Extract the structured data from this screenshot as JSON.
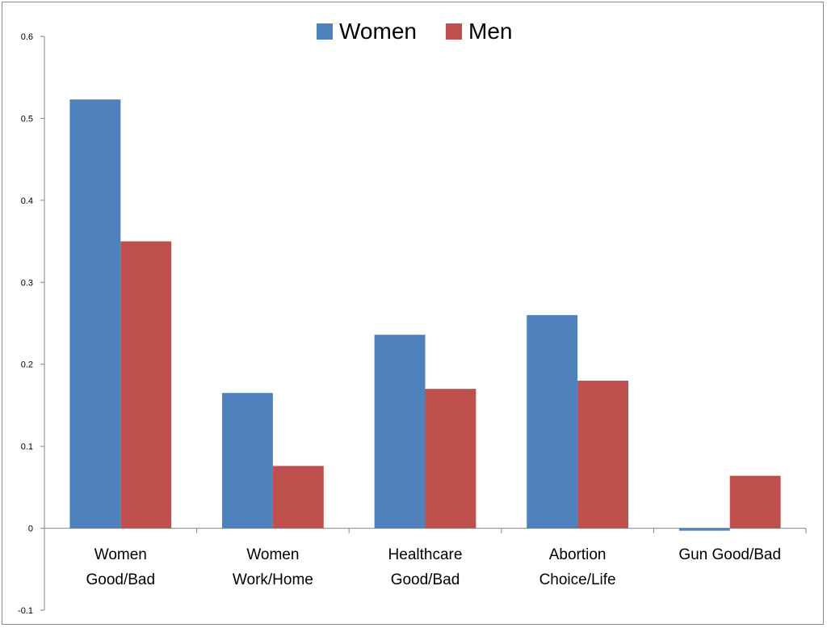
{
  "chart_data": {
    "type": "bar",
    "categories": [
      [
        "Women",
        "Good/Bad"
      ],
      [
        "Women",
        "Work/Home"
      ],
      [
        "Healthcare",
        "Good/Bad"
      ],
      [
        "Abortion",
        "Choice/Life"
      ],
      [
        "Gun Good/Bad"
      ]
    ],
    "series": [
      {
        "name": "Women",
        "color": "#4F81BD",
        "values": [
          0.523,
          0.165,
          0.236,
          0.26,
          -0.003
        ]
      },
      {
        "name": "Men",
        "color": "#C0504D",
        "values": [
          0.35,
          0.076,
          0.17,
          0.18,
          0.064
        ]
      }
    ],
    "yticks": [
      "0.6",
      "0.5",
      "0.4",
      "0.3",
      "0.2",
      "0.1",
      "0",
      "-0.1"
    ],
    "ylim": [
      -0.1,
      0.6
    ],
    "legend_position": "top",
    "grid": false
  }
}
